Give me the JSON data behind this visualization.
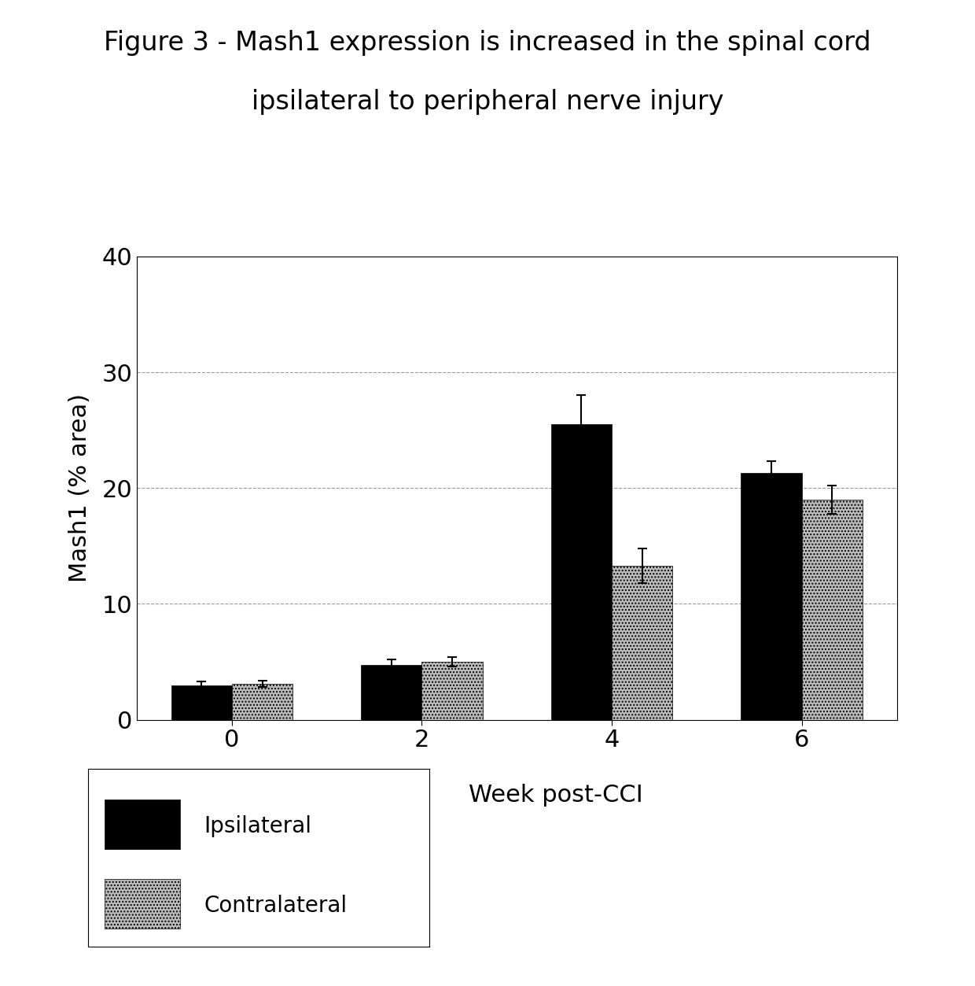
{
  "title_line1": "Figure 3 - Mash1 expression is increased in the spinal cord",
  "title_line2": "ipsilateral to peripheral nerve injury",
  "xlabel": "Week post-CCI",
  "ylabel": "Mash1 (% area)",
  "weeks": [
    0,
    2,
    4,
    6
  ],
  "ipsilateral_values": [
    3.0,
    4.7,
    25.5,
    21.3
  ],
  "contralateral_values": [
    3.1,
    5.0,
    13.3,
    19.0
  ],
  "ipsilateral_errors": [
    0.3,
    0.5,
    2.5,
    1.0
  ],
  "contralateral_errors": [
    0.3,
    0.4,
    1.5,
    1.2
  ],
  "ipsilateral_color": "#000000",
  "contralateral_color": "#bbbbbb",
  "ylim": [
    0,
    40
  ],
  "yticks": [
    0,
    10,
    20,
    30,
    40
  ],
  "bar_width": 0.32,
  "title_fontsize": 24,
  "axis_label_fontsize": 22,
  "tick_fontsize": 22,
  "legend_fontsize": 20,
  "background_color": "#ffffff"
}
